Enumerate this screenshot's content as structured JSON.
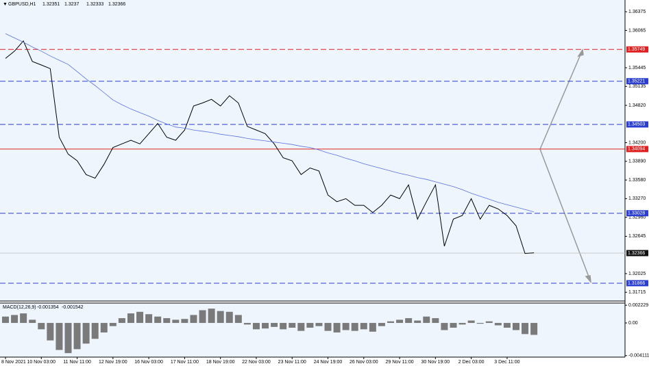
{
  "chart_data": [
    {
      "type": "line",
      "title": "GBPUSD,H1",
      "ohlc": [
        1.32351,
        1.3237,
        1.32333,
        1.32366
      ],
      "categories": [
        "8 Nov 2021",
        null,
        null,
        null,
        "10 Nov 03:00",
        null,
        null,
        null,
        "11 Nov 11:00",
        null,
        null,
        null,
        "12 Nov 19:00",
        null,
        null,
        null,
        "16 Nov 03:00",
        null,
        null,
        null,
        "17 Nov 11:00",
        null,
        null,
        null,
        "18 Nov 19:00",
        null,
        null,
        null,
        "22 Nov 03:00",
        null,
        null,
        null,
        "23 Nov 11:00",
        null,
        null,
        null,
        "24 Nov 19:00",
        null,
        null,
        null,
        "26 Nov 03:00",
        null,
        null,
        null,
        "29 Nov 11:00",
        null,
        null,
        null,
        "30 Nov 19:00",
        null,
        null,
        null,
        "2 Dec 03:00",
        null,
        null,
        null,
        "3 Dec 11:00",
        null,
        null,
        null
      ],
      "series": [
        {
          "color": "#000000",
          "values": [
            1.356,
            1.3572,
            1.3589,
            1.3555,
            1.3549,
            1.3543,
            1.3429,
            1.3401,
            1.339,
            1.3367,
            1.3361,
            1.3384,
            1.3412,
            1.3418,
            1.3424,
            1.3418,
            1.3435,
            1.3452,
            1.3429,
            1.3424,
            1.3441,
            1.3481,
            1.3486,
            1.3492,
            1.3481,
            1.3498,
            1.3486,
            1.3447,
            1.3441,
            1.3435,
            1.3418,
            1.3395,
            1.339,
            1.3367,
            1.3378,
            1.3373,
            1.3333,
            1.3322,
            1.3327,
            1.3316,
            1.3316,
            1.3304,
            1.3316,
            1.3333,
            1.3327,
            1.335,
            1.3293,
            1.3322,
            1.335,
            1.3248,
            1.3293,
            1.3299,
            1.3327,
            1.3293,
            1.3316,
            1.331,
            1.3299,
            1.3282,
            1.3236,
            1.3237
          ]
        },
        {
          "color": "#5a6fe0",
          "values": [
            1.3601,
            1.3594,
            1.3587,
            1.3579,
            1.3572,
            1.3564,
            1.3557,
            1.355,
            1.3538,
            1.3526,
            1.3515,
            1.3503,
            1.3491,
            1.3483,
            1.3476,
            1.347,
            1.3464,
            1.3457,
            1.3451,
            1.3446,
            1.3444,
            1.3441,
            1.3439,
            1.3437,
            1.3434,
            1.3432,
            1.343,
            1.3427,
            1.3425,
            1.3423,
            1.3421,
            1.3419,
            1.3417,
            1.3414,
            1.3412,
            1.3408,
            1.3403,
            1.3399,
            1.3394,
            1.339,
            1.3385,
            1.3381,
            1.3377,
            1.3373,
            1.3369,
            1.3366,
            1.3362,
            1.3359,
            1.3355,
            1.3351,
            1.3347,
            1.3342,
            1.3336,
            1.3331,
            1.3326,
            1.3321,
            1.3317,
            1.3313,
            1.3309,
            1.3305
          ]
        }
      ],
      "levels": [
        {
          "value": 1.35749,
          "color": "#e02020",
          "style": "dashed"
        },
        {
          "value": 1.35221,
          "color": "#2a3ed0",
          "style": "dashed"
        },
        {
          "value": 1.34503,
          "color": "#2a3ed0",
          "style": "dashed"
        },
        {
          "value": 1.34094,
          "color": "#e02020",
          "style": "solid"
        },
        {
          "value": 1.33028,
          "color": "#2a3ed0",
          "style": "dashed"
        },
        {
          "value": 1.31866,
          "color": "#2a3ed0",
          "style": "dashed"
        }
      ],
      "ylim": [
        1.3157,
        1.3657
      ],
      "yticks": [
        1.36375,
        1.36065,
        1.35445,
        1.35135,
        {
          "value": 1.3482,
          "label": "1.34820"
        },
        {
          "value": 1.342,
          "label": "1.34200"
        },
        {
          "value": 1.3389,
          "label": "1.33890"
        },
        {
          "value": 1.3358,
          "label": "1.33580"
        },
        {
          "value": 1.3327,
          "label": "1.33270"
        },
        {
          "value": 1.3296,
          "label": "1.32960"
        },
        1.32645,
        1.32025,
        1.31715
      ]
    },
    {
      "type": "bar",
      "title": "MACD(12,26,9)",
      "readout": [
        -0.001354,
        -0.001542
      ],
      "color": "#7a7a7a",
      "values": [
        0.0008,
        0.001,
        0.0012,
        0.0004,
        -0.0008,
        -0.0022,
        -0.0034,
        -0.0038,
        -0.0033,
        -0.0026,
        -0.002,
        -0.0012,
        -0.0004,
        0.0006,
        0.0012,
        0.0014,
        0.0011,
        0.0008,
        0.0006,
        0.0004,
        0.0005,
        0.001,
        0.0016,
        0.0018,
        0.0015,
        0.0014,
        0.001,
        -0.0002,
        -0.0008,
        -0.0007,
        -0.0005,
        -0.0008,
        -0.0006,
        -0.001,
        -0.0006,
        -0.0004,
        -0.001,
        -0.0012,
        -0.0009,
        -0.001,
        -0.0008,
        -0.0011,
        -0.0004,
        0.0002,
        0.0004,
        0.0006,
        0.0003,
        0.0008,
        0.0006,
        -0.0009,
        -0.0006,
        -0.0002,
        0.0003,
        -0.0001,
        0.0002,
        -0.0003,
        -0.0006,
        -0.0009,
        -0.0014,
        -0.0015
      ],
      "ylim": [
        -0.0043,
        0.0025
      ],
      "yticks": [
        0.002229,
        {
          "value": 0,
          "label": "0.00"
        },
        -0.004111
      ]
    }
  ]
}
